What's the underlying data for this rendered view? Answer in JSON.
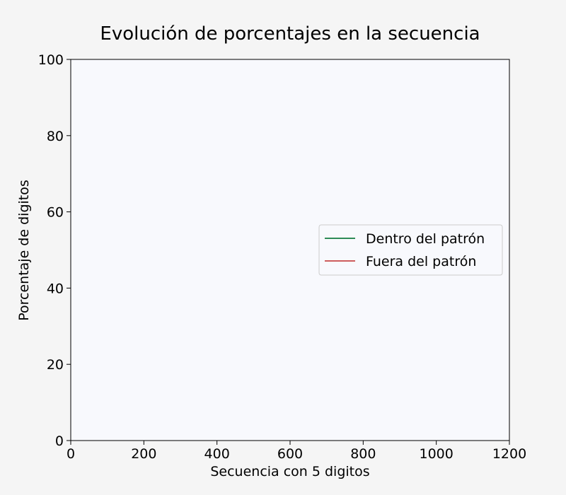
{
  "colors": {
    "page_background": "#f5f5f5",
    "plot_background": "#f8f9fd",
    "series_inside": "#2e8b57",
    "series_outside": "#cd5c5c"
  },
  "chart_data": {
    "type": "line",
    "title": "Evolución de porcentajes en la secuencia",
    "xlabel": "Secuencia con 5 digitos",
    "ylabel": "Porcentaje de digitos",
    "xlim": [
      0,
      1200
    ],
    "ylim": [
      0,
      100
    ],
    "xticks": [
      0,
      200,
      400,
      600,
      800,
      1000,
      1200
    ],
    "yticks": [
      0,
      20,
      40,
      60,
      80,
      100
    ],
    "grid": false,
    "legend_position": "center-right",
    "series": [
      {
        "name": "Dentro del patrón",
        "color": "#2e8b57",
        "x": [],
        "y": []
      },
      {
        "name": "Fuera del patrón",
        "color": "#cd5c5c",
        "x": [],
        "y": []
      }
    ]
  }
}
